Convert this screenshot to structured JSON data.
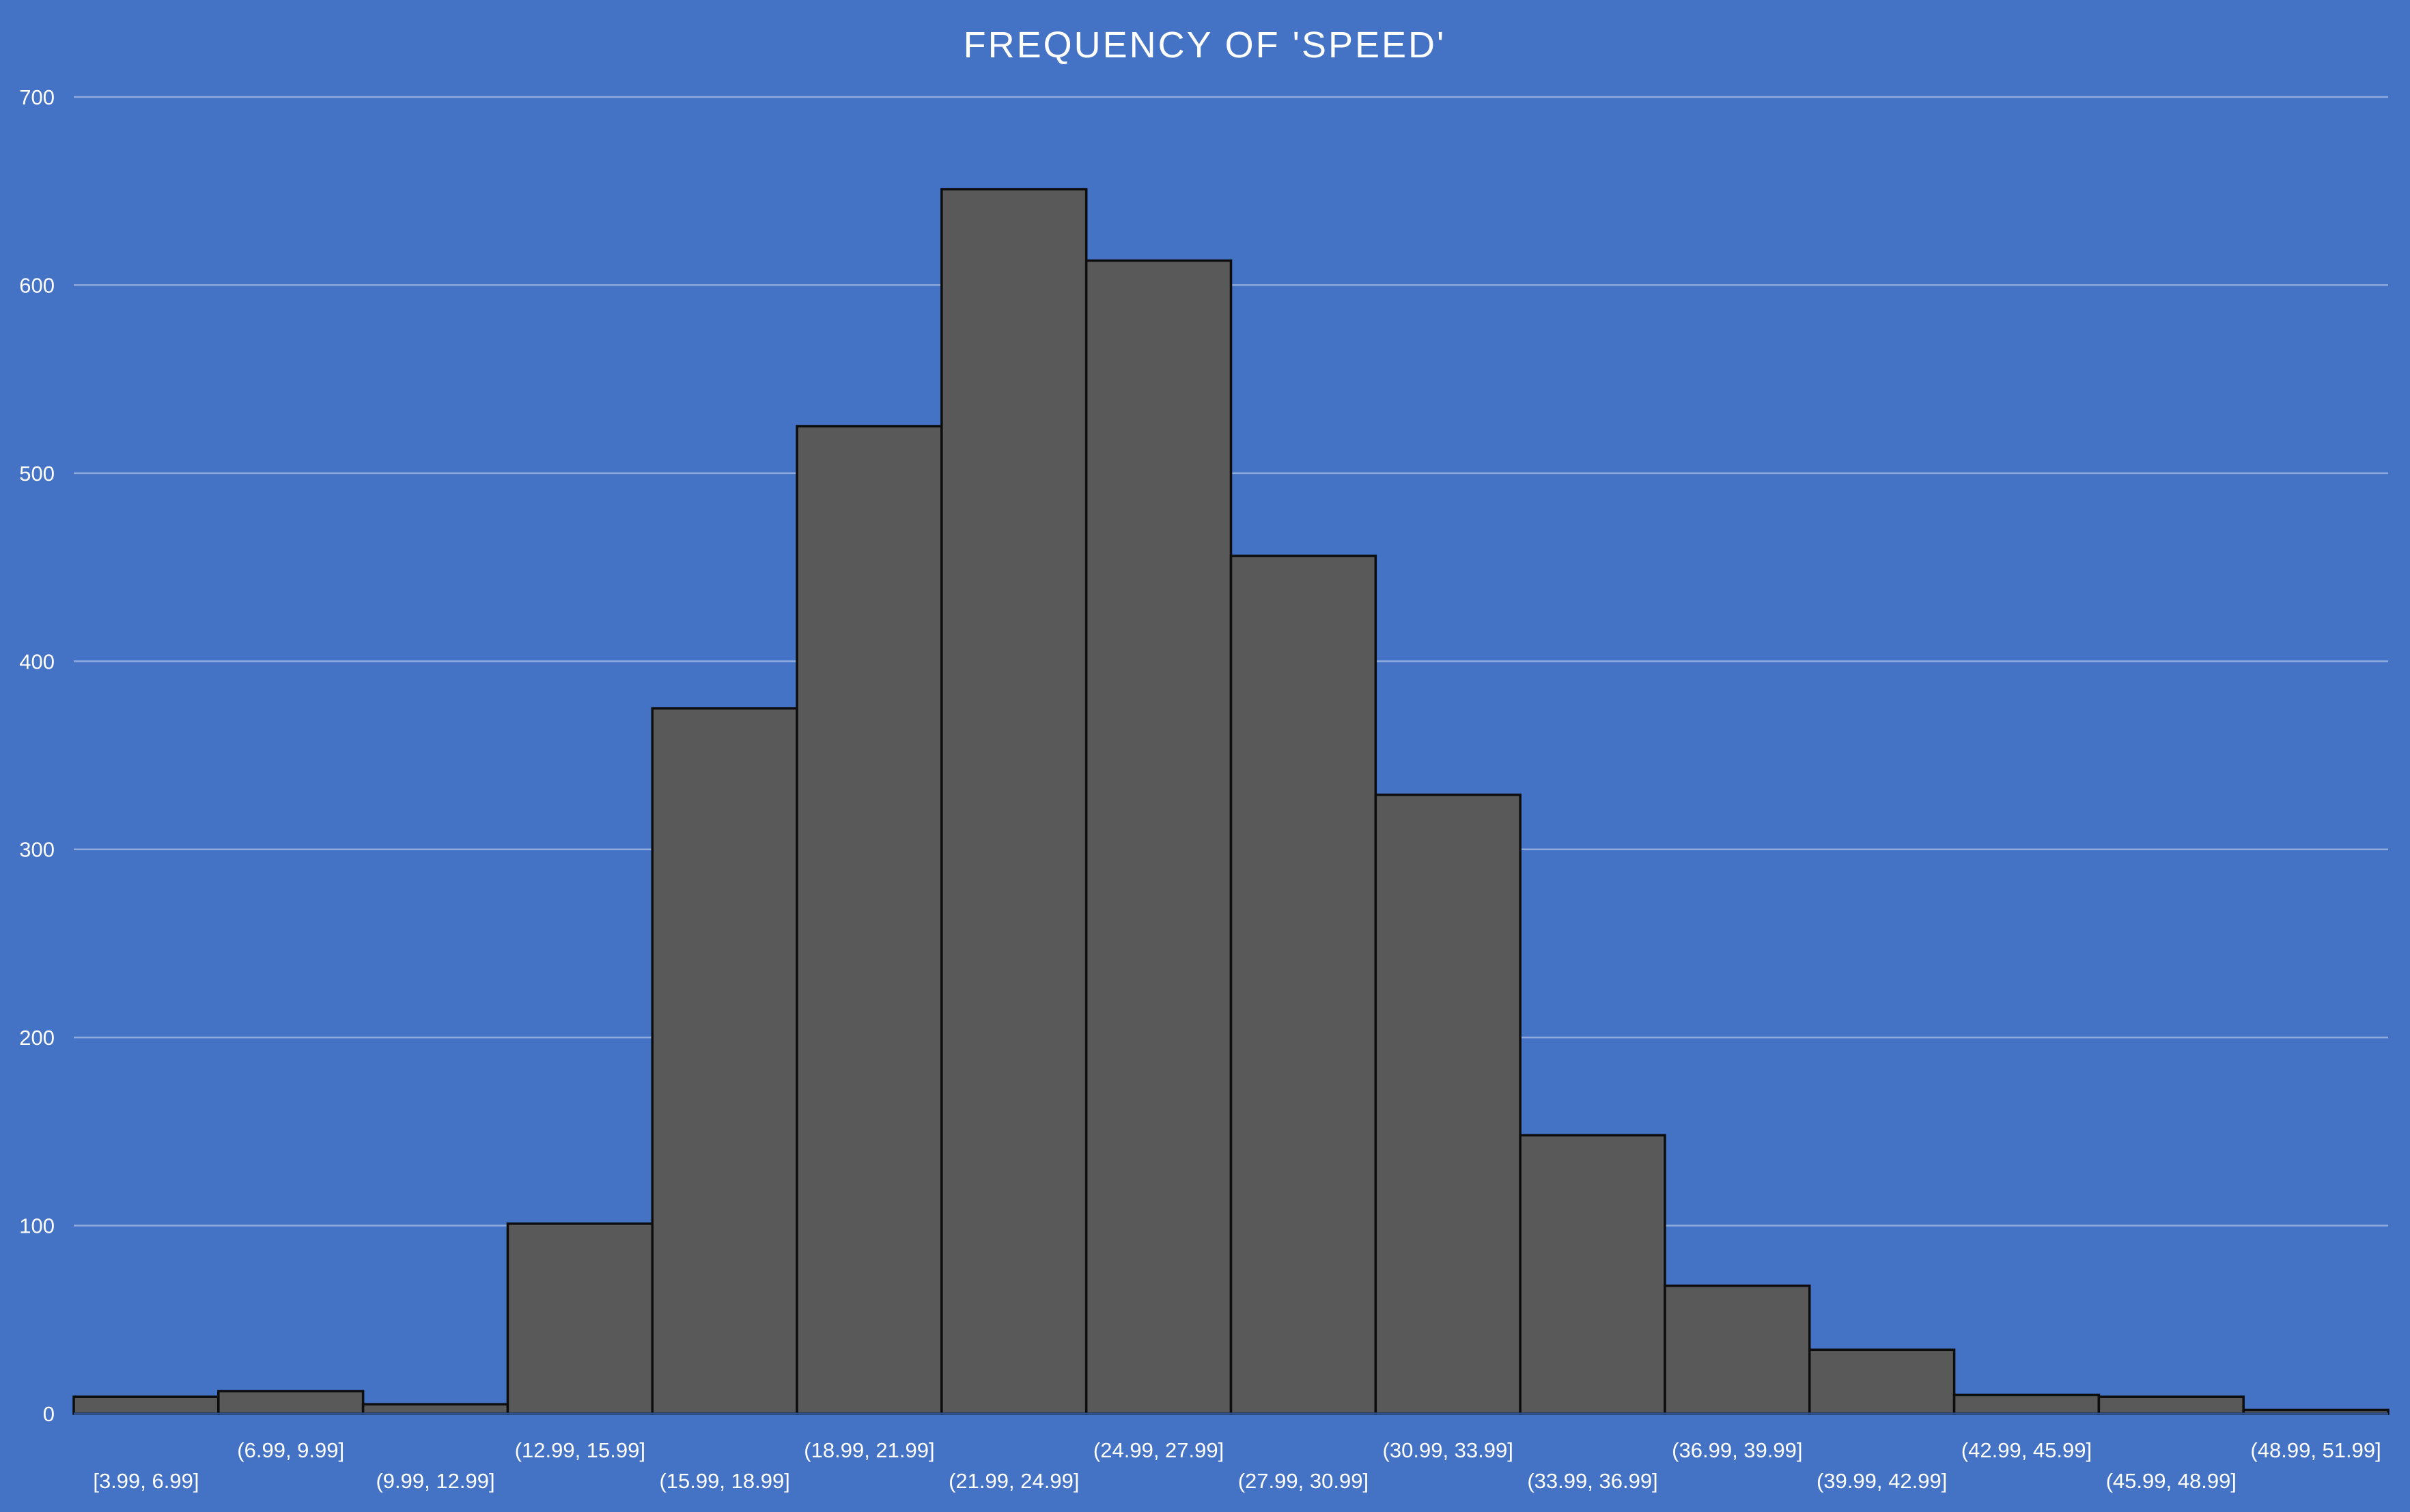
{
  "chart_data": {
    "type": "bar",
    "title": "FREQUENCY OF 'SPEED'",
    "xlabel": "",
    "ylabel": "",
    "ylim": [
      0,
      700
    ],
    "yticks": [
      "0",
      "100",
      "200",
      "300",
      "400",
      "500",
      "600",
      "700"
    ],
    "grid": true,
    "legend": "none",
    "categories": [
      "[3.99, 6.99]",
      "(6.99, 9.99]",
      "(9.99, 12.99]",
      "(12.99, 15.99]",
      "(15.99, 18.99]",
      "(18.99, 21.99]",
      "(21.99, 24.99]",
      "(24.99, 27.99]",
      "(27.99, 30.99]",
      "(30.99, 33.99]",
      "(33.99, 36.99]",
      "(36.99, 39.99]",
      "(39.99, 42.99]",
      "(42.99, 45.99]",
      "(45.99, 48.99]",
      "(48.99, 51.99]"
    ],
    "values": [
      9,
      12,
      5,
      101,
      375,
      525,
      651,
      613,
      456,
      329,
      148,
      68,
      34,
      10,
      9,
      2
    ],
    "colors": {
      "background": "#4472C4",
      "bar_fill": "#595959",
      "bar_edge": "#0D0D0D",
      "gridline": "#8FAADC",
      "text": "#FFFFFF"
    }
  }
}
